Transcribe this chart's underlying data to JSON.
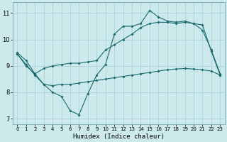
{
  "xlabel": "Humidex (Indice chaleur)",
  "bg_color": "#cce9eb",
  "grid_color": "#aad4d6",
  "line_color": "#1a6b6e",
  "xlim": [
    -0.5,
    23.5
  ],
  "ylim": [
    6.8,
    11.4
  ],
  "xticks": [
    0,
    1,
    2,
    3,
    4,
    5,
    6,
    7,
    8,
    9,
    10,
    11,
    12,
    13,
    14,
    15,
    16,
    17,
    18,
    19,
    20,
    21,
    22,
    23
  ],
  "yticks": [
    7,
    8,
    9,
    10,
    11
  ],
  "line1_x": [
    0,
    1,
    2,
    3,
    4,
    5,
    6,
    7,
    8,
    9,
    10,
    11,
    12,
    13,
    14,
    15,
    16,
    17,
    18,
    19,
    20,
    21,
    22,
    23
  ],
  "line1_y": [
    9.5,
    9.2,
    8.7,
    8.3,
    8.0,
    7.85,
    7.3,
    7.15,
    7.95,
    8.65,
    9.05,
    10.2,
    10.5,
    10.5,
    10.6,
    11.1,
    10.85,
    10.7,
    10.65,
    10.7,
    10.6,
    10.35,
    9.6,
    8.7
  ],
  "line2_x": [
    0,
    1,
    2,
    3,
    4,
    5,
    6,
    7,
    8,
    9,
    10,
    11,
    12,
    13,
    14,
    15,
    16,
    17,
    18,
    19,
    20,
    21,
    22,
    23
  ],
  "line2_y": [
    9.45,
    9.05,
    8.65,
    8.3,
    8.25,
    8.3,
    8.3,
    8.35,
    8.4,
    8.45,
    8.5,
    8.55,
    8.6,
    8.65,
    8.7,
    8.75,
    8.8,
    8.85,
    8.88,
    8.9,
    8.88,
    8.85,
    8.8,
    8.65
  ],
  "line3_x": [
    0,
    1,
    2,
    3,
    4,
    5,
    6,
    7,
    8,
    9,
    10,
    11,
    12,
    13,
    14,
    15,
    16,
    17,
    18,
    19,
    20,
    21,
    22,
    23
  ],
  "line3_y": [
    9.45,
    9.0,
    8.7,
    8.9,
    9.0,
    9.05,
    9.1,
    9.1,
    9.15,
    9.2,
    9.6,
    9.8,
    10.0,
    10.2,
    10.45,
    10.6,
    10.65,
    10.65,
    10.6,
    10.65,
    10.6,
    10.55,
    9.55,
    8.65
  ]
}
